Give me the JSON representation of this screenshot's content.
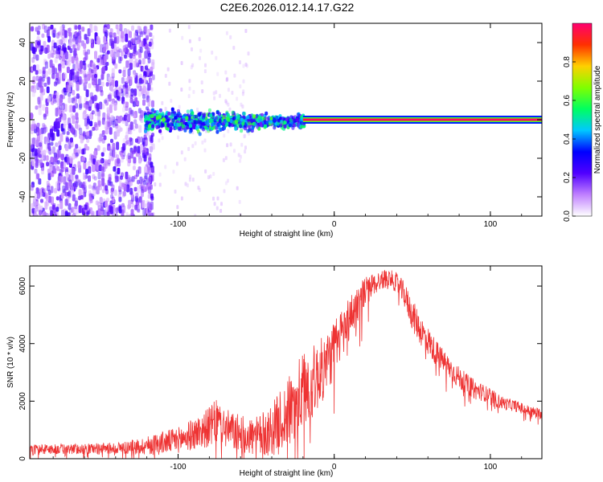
{
  "title": "C2E6.2026.012.14.17.G22",
  "chart_data": [
    {
      "type": "heatmap",
      "name": "spectrogram",
      "xlabel": "Height of straight line (km)",
      "ylabel": "Frequency (Hz)",
      "xlim": [
        -195,
        133
      ],
      "ylim": [
        -50,
        50
      ],
      "xticks": [
        -100,
        0,
        100
      ],
      "xtick_labels": [
        "-100",
        "0",
        "100"
      ],
      "yticks": [
        -40,
        -20,
        0,
        20,
        40
      ],
      "ytick_labels": [
        "-40",
        "-20",
        "0",
        "20",
        "40"
      ],
      "signal_line_hz": 0,
      "regions": [
        {
          "desc": "noise",
          "x_range": [
            -195,
            -122
          ],
          "freq_range": [
            -50,
            50
          ],
          "amplitude": 0.15
        },
        {
          "desc": "noisy signal",
          "x_range": [
            -122,
            -20
          ],
          "freq_range": [
            -8,
            8
          ],
          "amplitude": 0.35
        },
        {
          "desc": "strong carrier",
          "x_range": [
            -20,
            133
          ],
          "freq_range": [
            -1,
            1
          ],
          "amplitude": 0.98
        }
      ],
      "colorbar": {
        "label": "Normalized spectral amplitude",
        "range": [
          0,
          1
        ],
        "ticks": [
          0.0,
          0.2,
          0.4,
          0.6,
          0.8
        ],
        "tick_labels": [
          "0.0",
          "0.2",
          "0.4",
          "0.6",
          "0.8"
        ],
        "colors": [
          "#ffffff",
          "#c080ff",
          "#5000ff",
          "#0000ff",
          "#00c8ff",
          "#00ff60",
          "#80ff00",
          "#ffd000",
          "#ff3000",
          "#ff0070"
        ]
      }
    },
    {
      "type": "line",
      "name": "snr",
      "xlabel": "Height of straight line (km)",
      "ylabel": "SNR (10 * v/v)",
      "xlim": [
        -195,
        133
      ],
      "ylim": [
        0,
        6700
      ],
      "xticks": [
        -100,
        0,
        100
      ],
      "xtick_labels": [
        "-100",
        "0",
        "100"
      ],
      "yticks": [
        0,
        2000,
        4000,
        6000
      ],
      "ytick_labels": [
        "0",
        "2000",
        "4000",
        "6000"
      ],
      "color": "#ee3333",
      "x": [
        -195,
        -180,
        -160,
        -140,
        -125,
        -115,
        -100,
        -90,
        -80,
        -75,
        -70,
        -60,
        -50,
        -45,
        -40,
        -35,
        -30,
        -25,
        -20,
        -15,
        -10,
        -5,
        0,
        5,
        10,
        15,
        20,
        25,
        30,
        35,
        40,
        45,
        50,
        55,
        60,
        65,
        70,
        75,
        80,
        85,
        90,
        95,
        100,
        105,
        110,
        115,
        120,
        125,
        133
      ],
      "mean": [
        320,
        330,
        340,
        370,
        420,
        500,
        650,
        850,
        1100,
        1300,
        1050,
        850,
        750,
        850,
        1000,
        1250,
        1550,
        1900,
        2300,
        2600,
        2900,
        3300,
        3800,
        4400,
        4900,
        5400,
        5800,
        6050,
        6200,
        6300,
        6100,
        5700,
        5000,
        4500,
        4100,
        3700,
        3400,
        3100,
        2800,
        2600,
        2400,
        2300,
        2200,
        2000,
        1900,
        1850,
        1750,
        1650,
        1550
      ],
      "spread": [
        180,
        180,
        180,
        200,
        280,
        380,
        450,
        550,
        700,
        800,
        700,
        650,
        700,
        800,
        900,
        1100,
        1200,
        1400,
        1400,
        1300,
        1200,
        1100,
        1000,
        900,
        800,
        700,
        550,
        400,
        350,
        300,
        350,
        450,
        550,
        550,
        500,
        450,
        400,
        400,
        400,
        350,
        350,
        300,
        250,
        250,
        220,
        200,
        200,
        200,
        180
      ]
    }
  ]
}
